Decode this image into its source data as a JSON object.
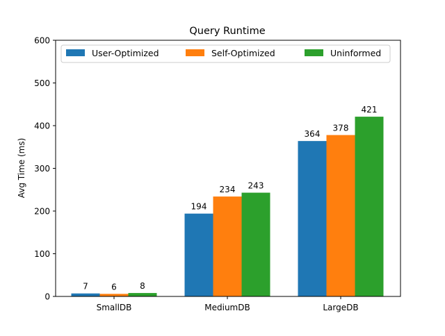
{
  "chart_data": {
    "type": "bar",
    "title": "Query Runtime",
    "xlabel": "",
    "ylabel": "Avg Time (ms)",
    "categories": [
      "SmallDB",
      "MediumDB",
      "LargeDB"
    ],
    "series": [
      {
        "name": "User-Optimized",
        "color": "#1f77b4",
        "values": [
          7,
          194,
          364
        ]
      },
      {
        "name": "Self-Optimized",
        "color": "#ff7f0e",
        "values": [
          6,
          234,
          378
        ]
      },
      {
        "name": "Uninformed",
        "color": "#2ca02c",
        "values": [
          8,
          243,
          421
        ]
      }
    ],
    "ylim": [
      0,
      600
    ],
    "yticks": [
      0,
      100,
      200,
      300,
      400,
      500,
      600
    ],
    "grid": false,
    "legend_position": "top",
    "show_value_labels": true
  }
}
